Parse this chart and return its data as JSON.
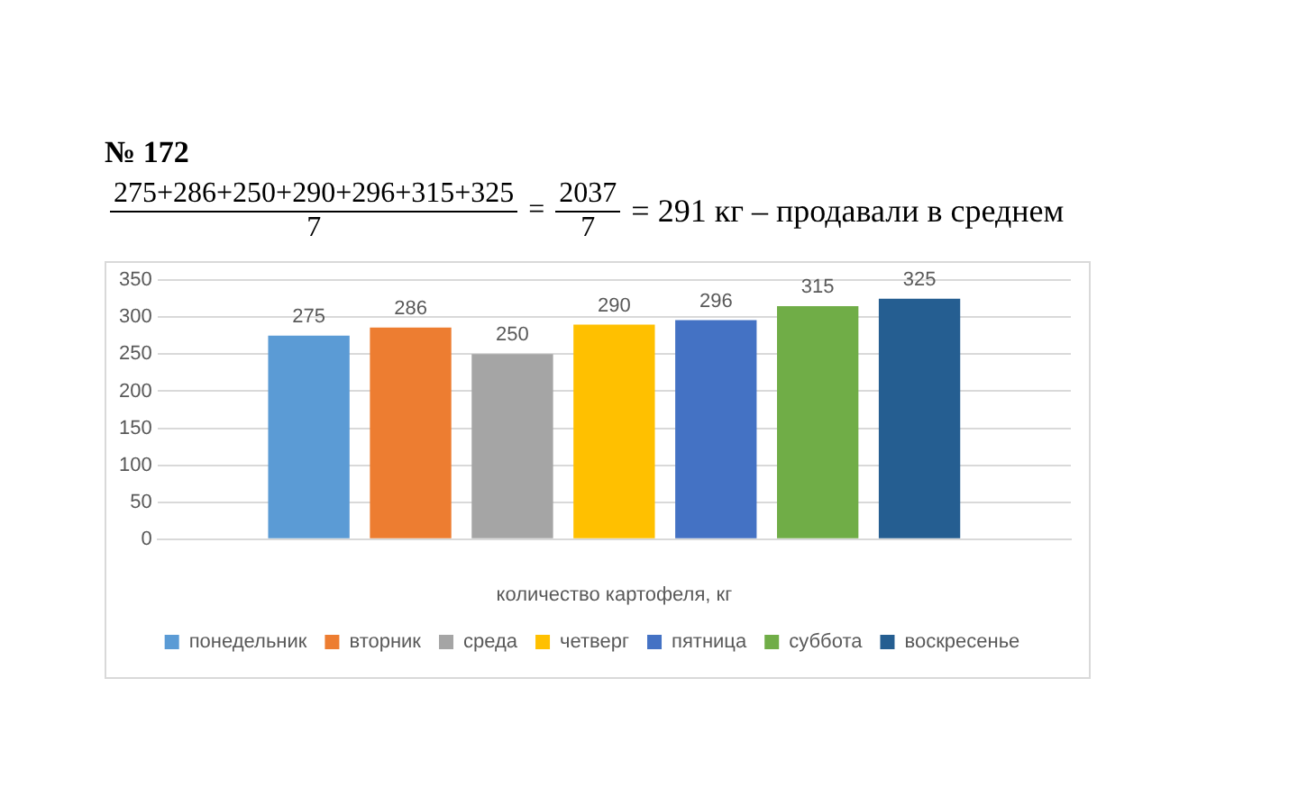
{
  "chart_data": {
    "type": "bar",
    "title": "№ 172",
    "annotations": [
      "275+286+250+290+296+315+325",
      "7",
      "=",
      "2037",
      "7",
      "= 291 кг – продавали в среднем"
    ],
    "categories": [
      null
    ],
    "xlabel": "количество картофеля, кг",
    "series": [
      {
        "name": "понедельник",
        "color": "#5b9bd5",
        "values": [
          275
        ]
      },
      {
        "name": "вторник",
        "color": "#ed7d31",
        "values": [
          286
        ]
      },
      {
        "name": "среда",
        "color": "#a5a5a5",
        "values": [
          250
        ]
      },
      {
        "name": "четверг",
        "color": "#ffc000",
        "values": [
          290
        ]
      },
      {
        "name": "пятница",
        "color": "#4472c4",
        "values": [
          296
        ]
      },
      {
        "name": "суббота",
        "color": "#70ad47",
        "values": [
          315
        ]
      },
      {
        "name": "воскресенье",
        "color": "#255e91",
        "values": [
          325
        ]
      }
    ],
    "ylim": [
      0,
      350
    ],
    "yticks": [
      0,
      50,
      100,
      150,
      200,
      250,
      300,
      350
    ],
    "grid": "y",
    "legend": "bottom",
    "data_labels": true
  }
}
